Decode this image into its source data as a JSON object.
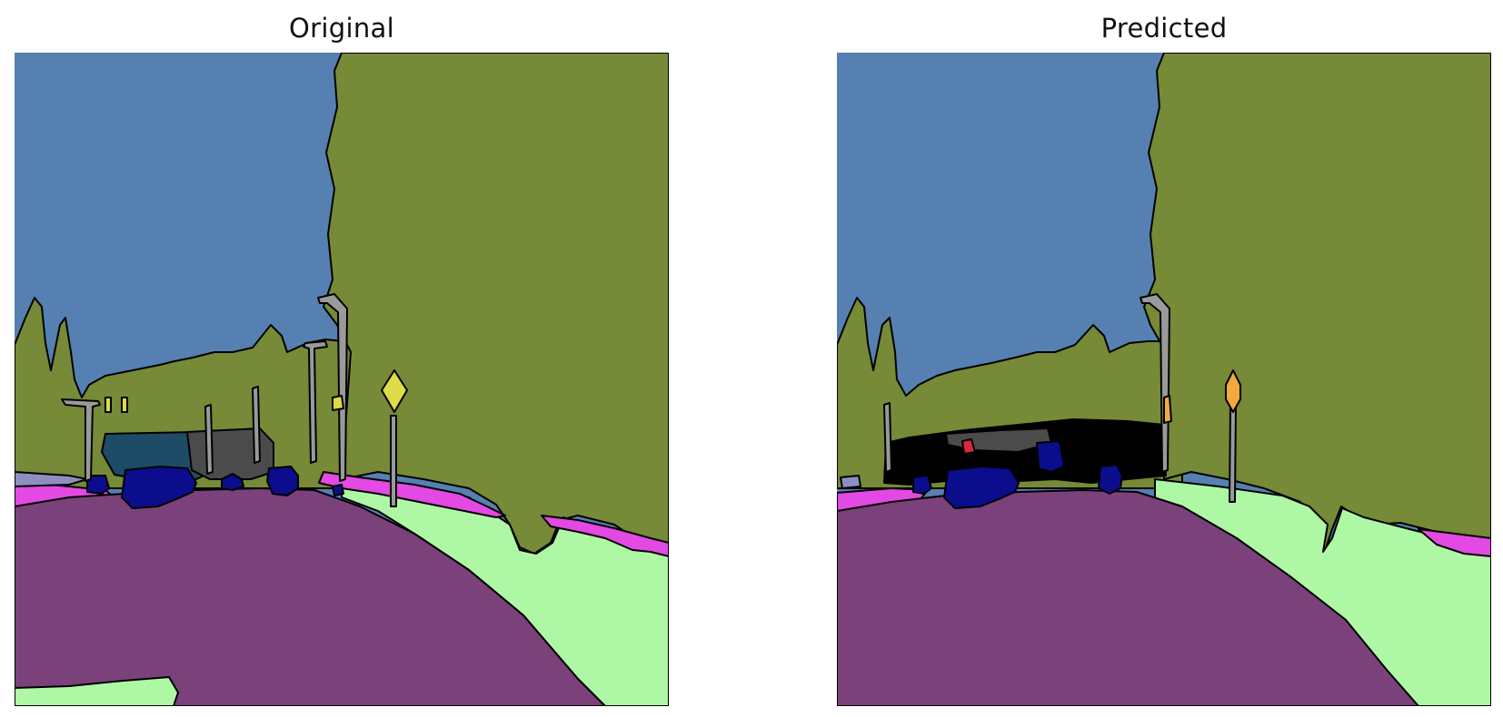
{
  "panels": {
    "original": {
      "title": "Original"
    },
    "predicted": {
      "title": "Predicted"
    }
  },
  "palette": {
    "sky": "#5680b2",
    "vegetation": "#768a37",
    "road": "#7a417a",
    "sidewalk": "#e349e3",
    "terrain": "#aef7a5",
    "car": "#0b0d8d",
    "truck": "#1e4b66",
    "pole": "#9a9a9a",
    "building": "#4b4b4b",
    "traffic_sign_gt": "#dedb48",
    "traffic_sign_pred": "#f2a93c",
    "traffic_light": "#f2a93c",
    "wall": "#8f8fbf",
    "unlabeled": "#000000",
    "person": "#d8283c",
    "outline": "#000000"
  }
}
